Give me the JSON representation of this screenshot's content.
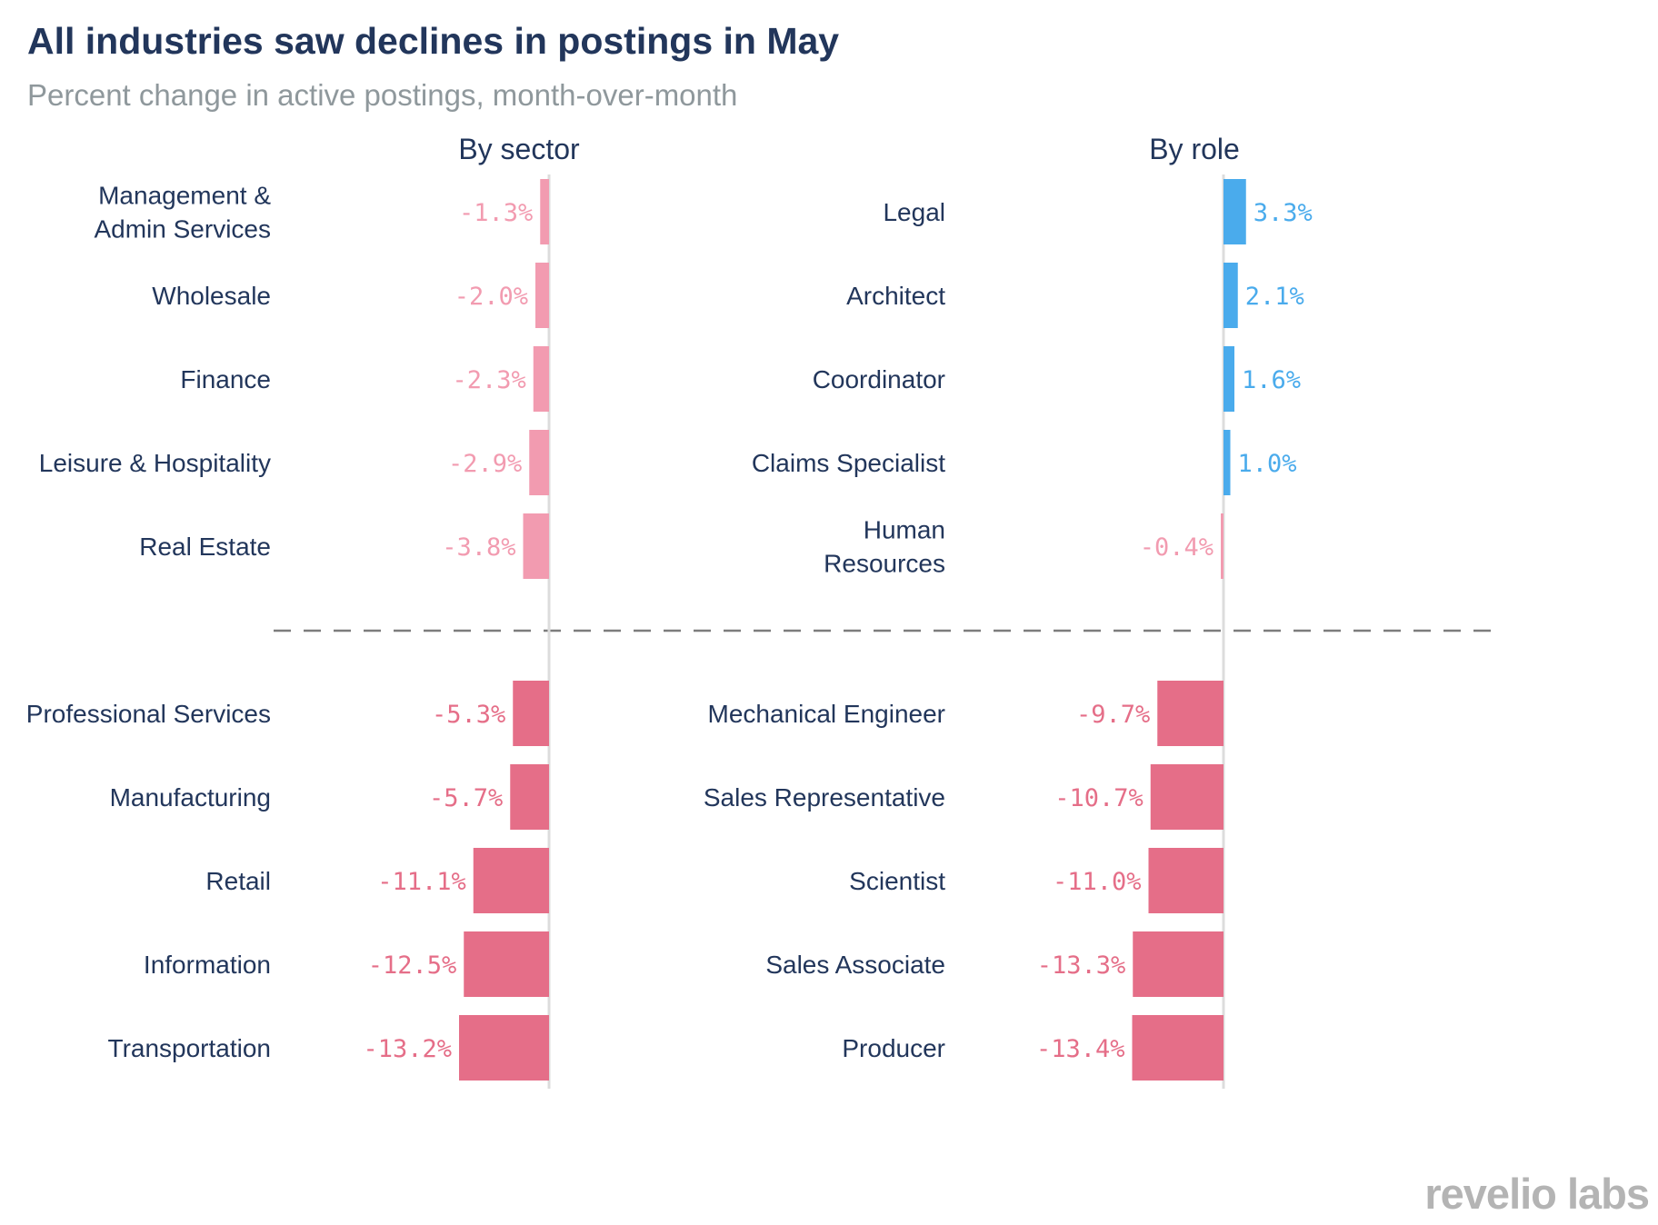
{
  "title": "All industries saw declines in postings in May",
  "subtitle": "Percent change in active postings, month-over-month",
  "logo_text": "revelio labs",
  "colors": {
    "positive": "#4aabec",
    "negative_light": "#f29bb0",
    "negative_dark": "#e56e88",
    "label_dark": "#22365b",
    "divider": "#7d7d7d",
    "axis": "#dcdcdc"
  },
  "chart_data": [
    {
      "type": "bar",
      "orientation": "horizontal",
      "title": "By sector",
      "groups": [
        {
          "tone": "light",
          "categories": [
            "Management &\nAdmin Services",
            "Wholesale",
            "Finance",
            "Leisure & Hospitality",
            "Real Estate"
          ],
          "values": [
            -1.3,
            -2.0,
            -2.3,
            -2.9,
            -3.8
          ],
          "labels": [
            "-1.3%",
            "-2.0%",
            "-2.3%",
            "-2.9%",
            "-3.8%"
          ]
        },
        {
          "tone": "dark",
          "categories": [
            "Professional Services",
            "Manufacturing",
            "Retail",
            "Information",
            "Transportation"
          ],
          "values": [
            -5.3,
            -5.7,
            -11.1,
            -12.5,
            -13.2
          ],
          "labels": [
            "-5.3%",
            "-5.7%",
            "-11.1%",
            "-12.5%",
            "-13.2%"
          ]
        }
      ]
    },
    {
      "type": "bar",
      "orientation": "horizontal",
      "title": "By role",
      "groups": [
        {
          "tone": "light",
          "categories": [
            "Legal",
            "Architect",
            "Coordinator",
            "Claims Specialist",
            "Human\nResources"
          ],
          "values": [
            3.3,
            2.1,
            1.6,
            1.0,
            -0.4
          ],
          "labels": [
            "3.3%",
            "2.1%",
            "1.6%",
            "1.0%",
            "-0.4%"
          ]
        },
        {
          "tone": "dark",
          "categories": [
            "Mechanical Engineer",
            "Sales Representative",
            "Scientist",
            "Sales Associate",
            "Producer"
          ],
          "values": [
            -9.7,
            -10.7,
            -11.0,
            -13.3,
            -13.4
          ],
          "labels": [
            "-9.7%",
            "-10.7%",
            "-11.0%",
            "-13.3%",
            "-13.4%"
          ]
        }
      ]
    }
  ]
}
